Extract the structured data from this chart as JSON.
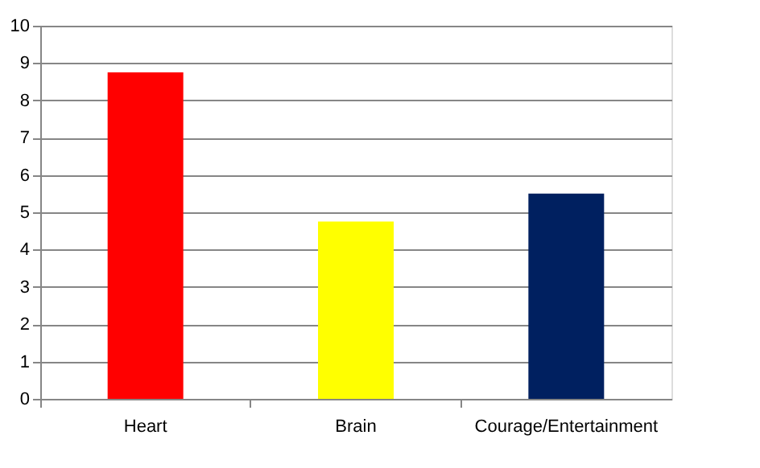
{
  "chart_data": {
    "type": "bar",
    "categories": [
      "Heart",
      "Brain",
      "Courage/Entertainment"
    ],
    "values": [
      8.75,
      4.75,
      5.5
    ],
    "colors": [
      "#ff0000",
      "#ffff00",
      "#002060"
    ],
    "ylim": [
      0,
      10
    ],
    "yticks": [
      0,
      1,
      2,
      3,
      4,
      5,
      6,
      7,
      8,
      9,
      10
    ],
    "grid": "y",
    "legend": false
  }
}
